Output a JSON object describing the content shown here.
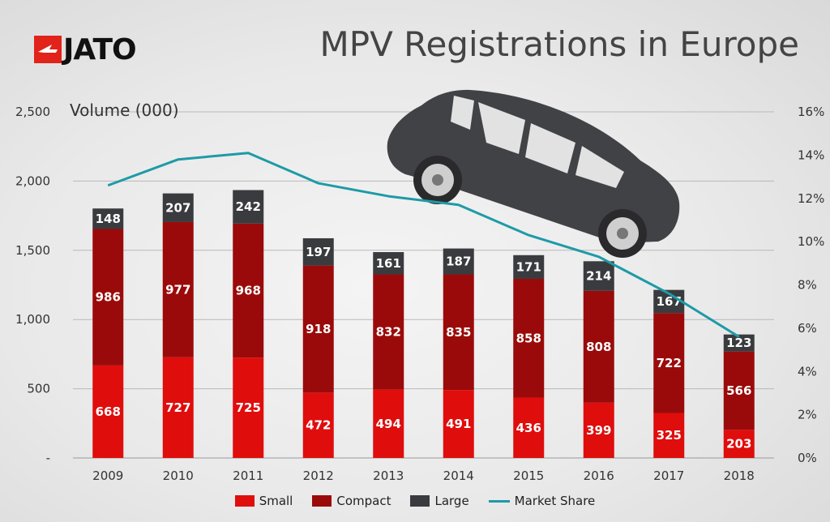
{
  "logo": {
    "text": "JATO",
    "color": "#e2231a"
  },
  "chart_data": {
    "type": "bar",
    "stacked": true,
    "title": "MPV Registrations in Europe",
    "ylabel": "Volume (000)",
    "categories": [
      "2009",
      "2010",
      "2011",
      "2012",
      "2013",
      "2014",
      "2015",
      "2016",
      "2017",
      "2018"
    ],
    "series": [
      {
        "name": "Small",
        "color": "#e00d0d",
        "values": [
          668,
          727,
          725,
          472,
          494,
          491,
          436,
          399,
          325,
          203
        ]
      },
      {
        "name": "Compact",
        "color": "#9b0a0a",
        "values": [
          986,
          977,
          968,
          918,
          832,
          835,
          858,
          808,
          722,
          566
        ]
      },
      {
        "name": "Large",
        "color": "#3a3b3f",
        "values": [
          148,
          207,
          242,
          197,
          161,
          187,
          171,
          214,
          167,
          123
        ]
      }
    ],
    "line_series": {
      "name": "Market Share",
      "color": "#1e9aa7",
      "axis": "right",
      "values": [
        12.6,
        13.8,
        14.1,
        12.7,
        12.1,
        11.7,
        10.3,
        9.3,
        7.6,
        5.6
      ]
    },
    "ylim": [
      0,
      2500
    ],
    "yticks": [
      0,
      500,
      1000,
      1500,
      2000,
      2500
    ],
    "ytick_labels": [
      "-",
      "500",
      "1,000",
      "1,500",
      "2,000",
      "2,500"
    ],
    "y2lim": [
      0,
      16
    ],
    "y2ticks": [
      0,
      2,
      4,
      6,
      8,
      10,
      12,
      14,
      16
    ],
    "y2tick_labels": [
      "0%",
      "2%",
      "4%",
      "6%",
      "8%",
      "10%",
      "12%",
      "14%",
      "16%"
    ],
    "grid": true,
    "legend_position": "bottom"
  }
}
